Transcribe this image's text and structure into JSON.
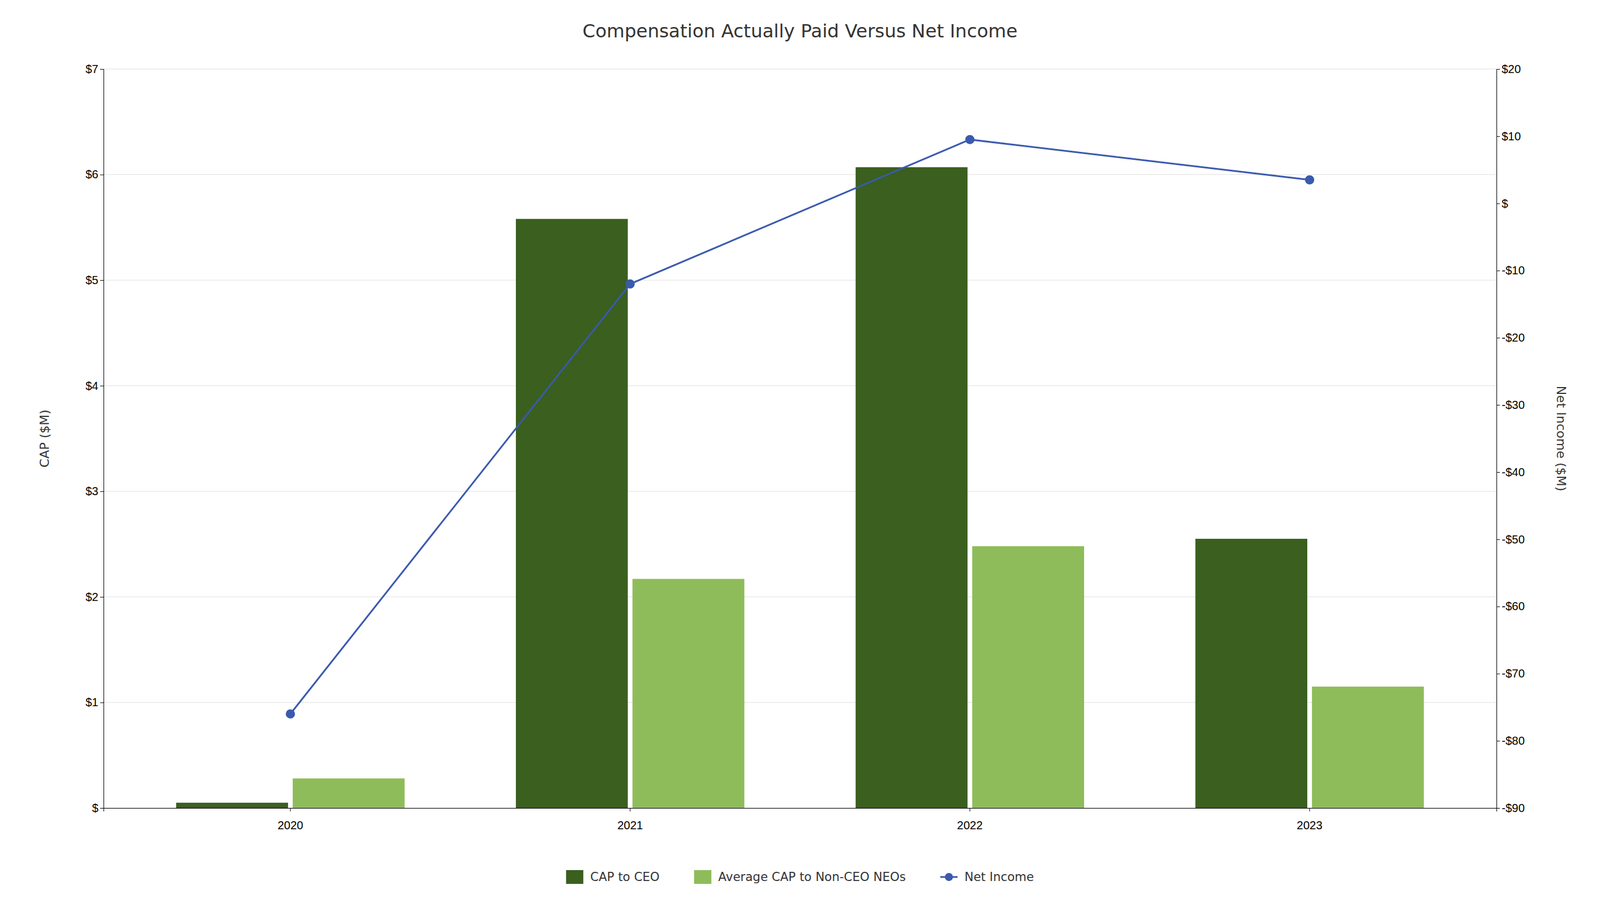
{
  "chart_data": {
    "type": "bar",
    "title": "Compensation Actually Paid Versus Net Income",
    "categories": [
      "2020",
      "2021",
      "2022",
      "2023"
    ],
    "series": [
      {
        "name": "CAP to CEO",
        "type": "bar",
        "color": "#3a5f1e",
        "values": [
          0.05,
          5.58,
          6.07,
          2.55
        ]
      },
      {
        "name": "Average CAP to Non-CEO NEOs",
        "type": "bar",
        "color": "#8fbc5a",
        "values": [
          0.28,
          2.17,
          2.48,
          1.15
        ]
      },
      {
        "name": "Net Income",
        "type": "line",
        "axis": "y2",
        "marker": "circle",
        "color": "#3a5aad",
        "values": [
          -76.0,
          -12.0,
          9.5,
          3.5
        ]
      }
    ],
    "y_label": "CAP ($M)",
    "y2_label": "Net Income ($M)",
    "ylim": [
      0,
      7
    ],
    "yticks": [
      {
        "value": 0,
        "label": "$"
      },
      {
        "value": 1,
        "label": "$1"
      },
      {
        "value": 2,
        "label": "$2"
      },
      {
        "value": 3,
        "label": "$3"
      },
      {
        "value": 4,
        "label": "$4"
      },
      {
        "value": 5,
        "label": "$5"
      },
      {
        "value": 6,
        "label": "$6"
      },
      {
        "value": 7,
        "label": "$7"
      }
    ],
    "y2lim": [
      -90,
      20
    ],
    "y2ticks": [
      {
        "value": -90,
        "label": "-$90"
      },
      {
        "value": -80,
        "label": "-$80"
      },
      {
        "value": -70,
        "label": "-$70"
      },
      {
        "value": -60,
        "label": "-$60"
      },
      {
        "value": -50,
        "label": "-$50"
      },
      {
        "value": -40,
        "label": "-$40"
      },
      {
        "value": -30,
        "label": "-$30"
      },
      {
        "value": -20,
        "label": "-$20"
      },
      {
        "value": -10,
        "label": "-$10"
      },
      {
        "value": 0,
        "label": "$"
      },
      {
        "value": 10,
        "label": "$10"
      },
      {
        "value": 20,
        "label": "$20"
      }
    ],
    "grid": true,
    "legend": "bottom"
  }
}
